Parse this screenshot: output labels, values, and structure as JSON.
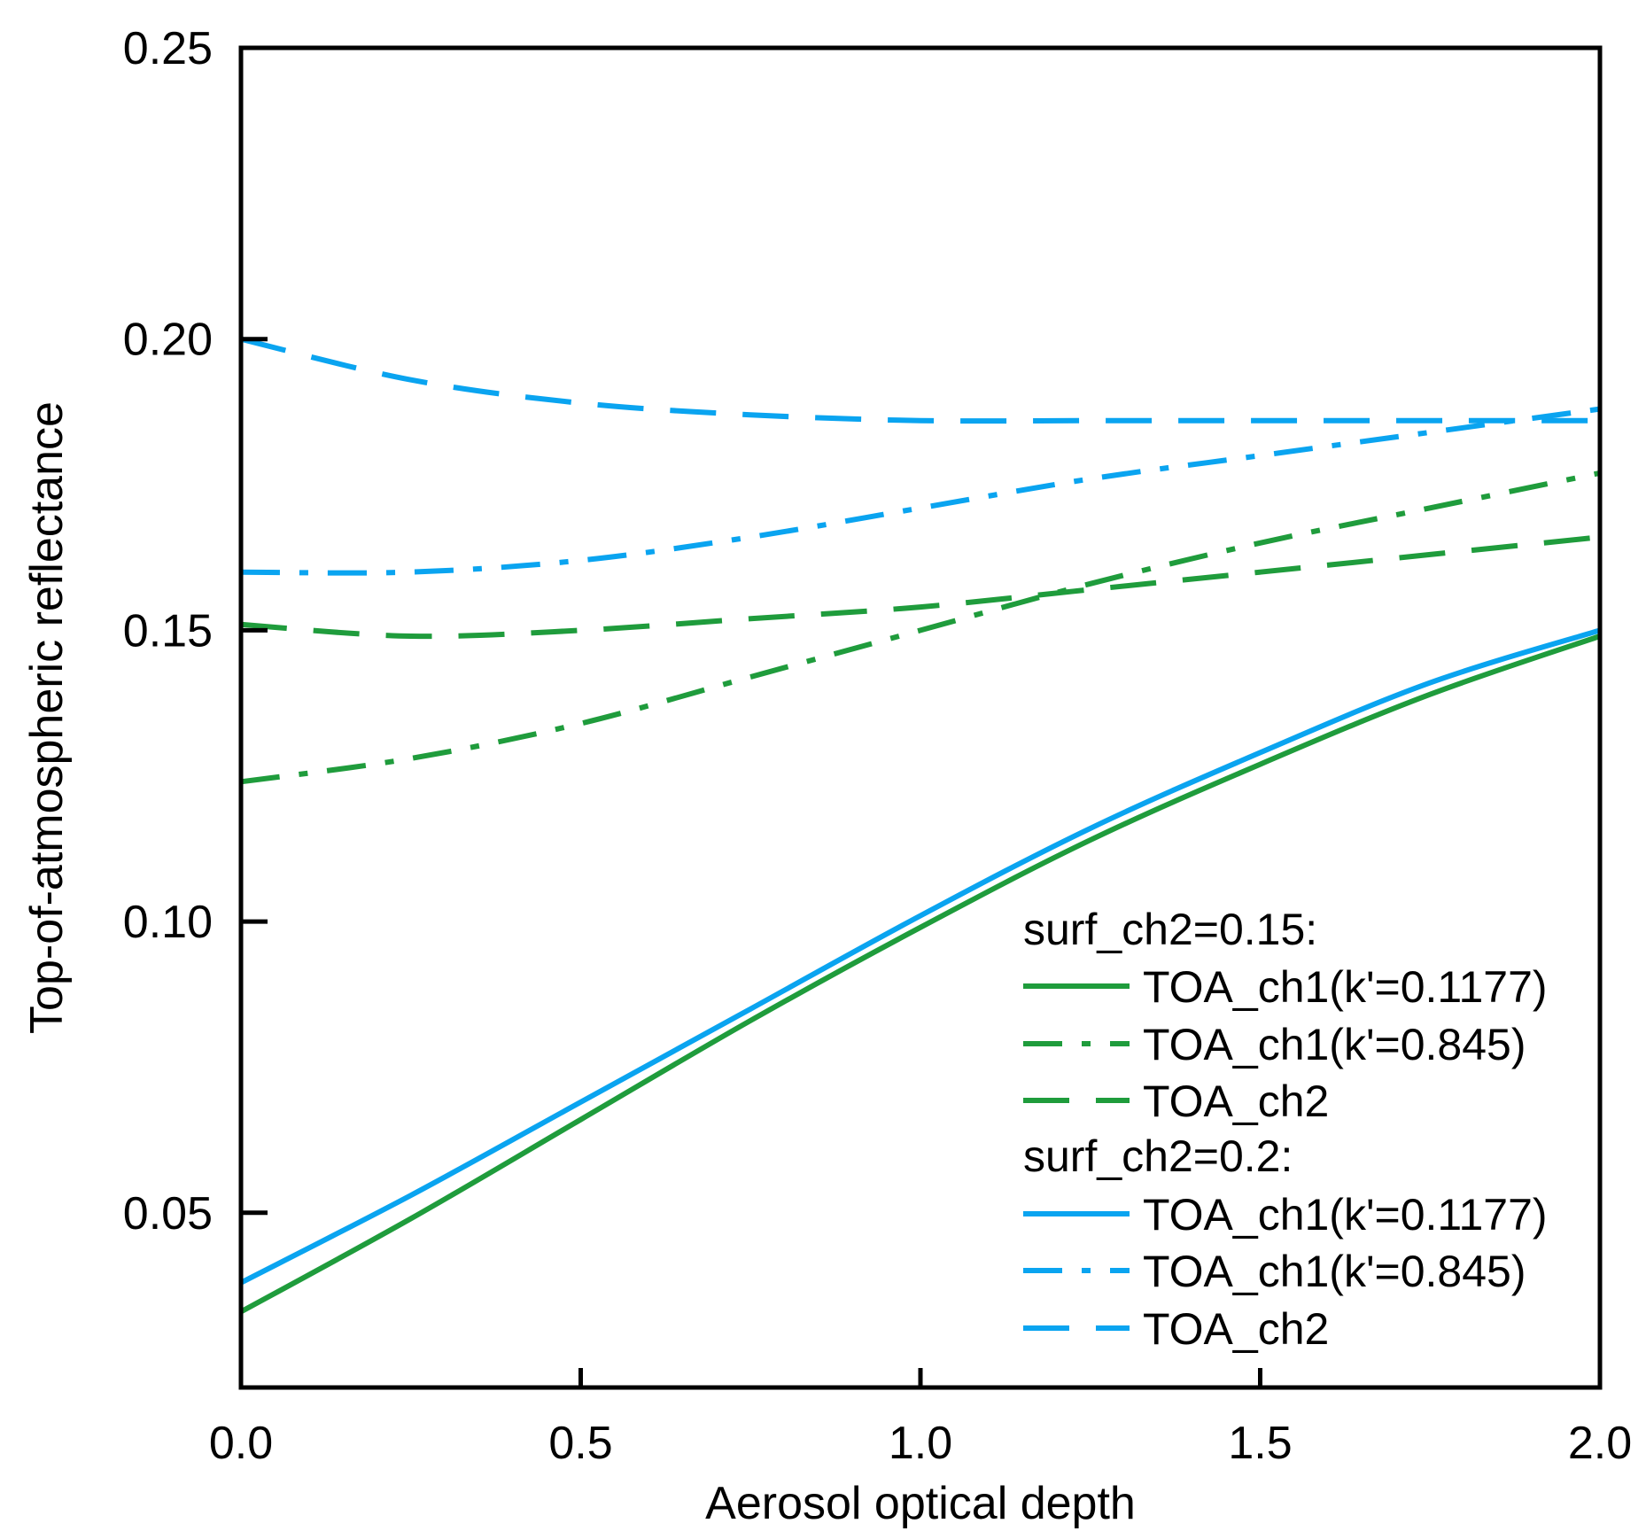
{
  "chart_data": {
    "type": "line",
    "title": "",
    "xlabel": "Aerosol optical depth",
    "ylabel": "Top-of-atmospheric reflectance",
    "xlim": [
      0.0,
      2.0
    ],
    "ylim": [
      0.02,
      0.25
    ],
    "xticks": [
      "0.0",
      "0.5",
      "1.0",
      "1.5",
      "2.0"
    ],
    "yticks": [
      "0.05",
      "0.10",
      "0.15",
      "0.20",
      "0.25"
    ],
    "grid": false,
    "legend_position": "bottom-right",
    "legend_groups": [
      {
        "title": "surf_ch2=0.15:",
        "color": "#1f9c3c",
        "entries": [
          {
            "label": "TOA_ch1(k'=0.1177)",
            "dash": "solid"
          },
          {
            "label": "TOA_ch1(k'=0.845)",
            "dash": "dashdot"
          },
          {
            "label": "TOA_ch2",
            "dash": "dashed"
          }
        ]
      },
      {
        "title": "surf_ch2=0.2:",
        "color": "#0aa4f0",
        "entries": [
          {
            "label": "TOA_ch1(k'=0.1177)",
            "dash": "solid"
          },
          {
            "label": "TOA_ch1(k'=0.845)",
            "dash": "dashdot"
          },
          {
            "label": "TOA_ch2",
            "dash": "dashed"
          }
        ]
      }
    ],
    "x": [
      0.0,
      0.25,
      0.5,
      0.75,
      1.0,
      1.25,
      1.5,
      1.75,
      2.0
    ],
    "series": [
      {
        "group": 0,
        "entry": 0,
        "color": "#1f9c3c",
        "dash": "solid",
        "values": [
          0.033,
          0.049,
          0.066,
          0.083,
          0.099,
          0.114,
          0.127,
          0.139,
          0.149
        ]
      },
      {
        "group": 0,
        "entry": 1,
        "color": "#1f9c3c",
        "dash": "dashdot",
        "values": [
          0.124,
          0.128,
          0.134,
          0.142,
          0.15,
          0.158,
          0.165,
          0.171,
          0.177
        ]
      },
      {
        "group": 0,
        "entry": 2,
        "color": "#1f9c3c",
        "dash": "dashed",
        "values": [
          0.151,
          0.149,
          0.15,
          0.152,
          0.154,
          0.157,
          0.16,
          0.163,
          0.166
        ]
      },
      {
        "group": 1,
        "entry": 0,
        "color": "#0aa4f0",
        "dash": "solid",
        "values": [
          0.038,
          0.053,
          0.069,
          0.085,
          0.101,
          0.116,
          0.129,
          0.141,
          0.15
        ]
      },
      {
        "group": 1,
        "entry": 1,
        "color": "#0aa4f0",
        "dash": "dashdot",
        "values": [
          0.16,
          0.16,
          0.162,
          0.166,
          0.171,
          0.176,
          0.18,
          0.184,
          0.188
        ]
      },
      {
        "group": 1,
        "entry": 2,
        "color": "#0aa4f0",
        "dash": "dashed",
        "values": [
          0.2,
          0.193,
          0.189,
          0.187,
          0.186,
          0.186,
          0.186,
          0.186,
          0.186
        ]
      }
    ]
  }
}
